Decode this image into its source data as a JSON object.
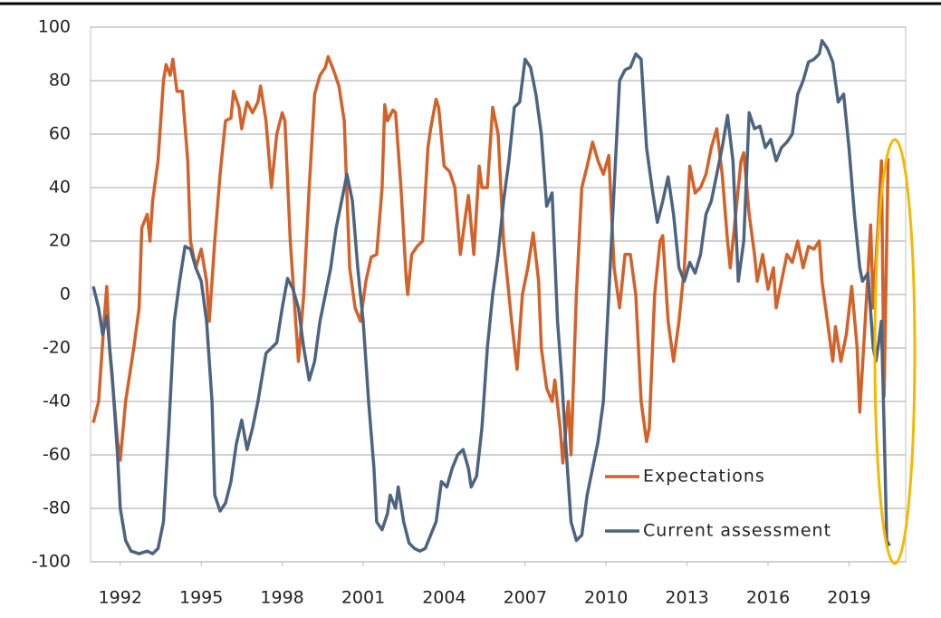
{
  "chart_data": {
    "type": "line",
    "xlim": [
      1990.9,
      2021.1
    ],
    "xticks": [
      1992,
      1995,
      1998,
      2001,
      2004,
      2007,
      2010,
      2013,
      2016,
      2019
    ],
    "ylim": [
      -100,
      100
    ],
    "yticks": [
      -100,
      -80,
      -60,
      -40,
      -20,
      0,
      20,
      40,
      60,
      80,
      100
    ],
    "grid": true,
    "legend": "lower right",
    "series": [
      {
        "name": "Expectations",
        "color": "#d2622a",
        "x": [
          1991.0,
          1991.2,
          1991.4,
          1991.5,
          1991.6,
          1991.9,
          1992.0,
          1992.2,
          1992.5,
          1992.7,
          1992.8,
          1993.0,
          1993.1,
          1993.2,
          1993.4,
          1993.6,
          1993.7,
          1993.85,
          1993.95,
          1994.1,
          1994.3,
          1994.5,
          1994.6,
          1994.8,
          1995.0,
          1995.2,
          1995.3,
          1995.5,
          1995.7,
          1995.9,
          1996.1,
          1996.2,
          1996.4,
          1996.5,
          1996.7,
          1996.9,
          1997.1,
          1997.2,
          1997.4,
          1997.6,
          1997.8,
          1998.0,
          1998.1,
          1998.3,
          1998.5,
          1998.6,
          1998.8,
          1999.0,
          1999.2,
          1999.4,
          1999.6,
          1999.7,
          1999.9,
          2000.1,
          2000.3,
          2000.5,
          2000.7,
          2000.9,
          2001.1,
          2001.3,
          2001.5,
          2001.7,
          2001.8,
          2001.9,
          2002.1,
          2002.2,
          2002.4,
          2002.6,
          2002.65,
          2002.8,
          2003.0,
          2003.2,
          2003.4,
          2003.5,
          2003.7,
          2003.8,
          2004.0,
          2004.2,
          2004.4,
          2004.6,
          2004.8,
          2004.9,
          2005.1,
          2005.3,
          2005.4,
          2005.6,
          2005.8,
          2006.0,
          2006.2,
          2006.5,
          2006.7,
          2006.9,
          2007.1,
          2007.3,
          2007.5,
          2007.6,
          2007.8,
          2008.0,
          2008.1,
          2008.3,
          2008.4,
          2008.6,
          2008.7,
          2008.9,
          2009.1,
          2009.3,
          2009.5,
          2009.7,
          2009.9,
          2010.1,
          2010.3,
          2010.5,
          2010.7,
          2010.9,
          2011.1,
          2011.3,
          2011.5,
          2011.6,
          2011.8,
          2012.0,
          2012.1,
          2012.3,
          2012.5,
          2012.7,
          2012.9,
          2013.1,
          2013.3,
          2013.5,
          2013.7,
          2013.9,
          2014.1,
          2014.3,
          2014.5,
          2014.6,
          2014.8,
          2015.0,
          2015.1,
          2015.3,
          2015.5,
          2015.6,
          2015.8,
          2016.0,
          2016.2,
          2016.3,
          2016.5,
          2016.7,
          2016.9,
          2017.1,
          2017.3,
          2017.5,
          2017.7,
          2017.9,
          2018.0,
          2018.2,
          2018.4,
          2018.5,
          2018.7,
          2018.9,
          2019.1,
          2019.3,
          2019.4,
          2019.6,
          2019.8,
          2019.9,
          2020.1,
          2020.2,
          2020.3,
          2020.45
        ],
        "values": [
          -48,
          -40,
          -10,
          3,
          -20,
          -55,
          -62,
          -40,
          -20,
          -5,
          25,
          30,
          20,
          35,
          50,
          80,
          86,
          82,
          88,
          76,
          76,
          50,
          20,
          10,
          17,
          5,
          -10,
          20,
          45,
          65,
          66,
          76,
          70,
          62,
          72,
          68,
          72,
          78,
          65,
          40,
          60,
          68,
          65,
          20,
          -10,
          -25,
          0,
          40,
          75,
          82,
          85,
          89,
          84,
          78,
          65,
          10,
          -5,
          -10,
          5,
          14,
          15,
          40,
          71,
          65,
          69,
          68,
          40,
          5,
          0,
          15,
          18,
          20,
          55,
          62,
          73,
          70,
          48,
          46,
          40,
          15,
          30,
          37,
          15,
          48,
          40,
          40,
          70,
          60,
          20,
          -10,
          -28,
          0,
          10,
          23,
          5,
          -20,
          -35,
          -40,
          -32,
          -50,
          -63,
          -40,
          -60,
          0,
          40,
          48,
          57,
          50,
          45,
          52,
          10,
          -5,
          15,
          15,
          0,
          -40,
          -55,
          -50,
          0,
          20,
          22,
          -10,
          -25,
          -10,
          10,
          48,
          38,
          40,
          45,
          55,
          62,
          45,
          20,
          10,
          30,
          50,
          53,
          30,
          15,
          5,
          15,
          2,
          10,
          -5,
          5,
          15,
          12,
          20,
          10,
          18,
          17,
          20,
          5,
          -10,
          -25,
          -12,
          -25,
          -15,
          3,
          -20,
          -44,
          -10,
          26,
          -5,
          30,
          50,
          -38,
          51
        ]
      },
      {
        "name": "Current assessment",
        "color": "#4d6481",
        "x": [
          1991.0,
          1991.2,
          1991.35,
          1991.5,
          1991.7,
          1991.9,
          1992.0,
          1992.2,
          1992.4,
          1992.7,
          1993.0,
          1993.2,
          1993.4,
          1993.6,
          1993.8,
          1994.0,
          1994.2,
          1994.4,
          1994.6,
          1994.8,
          1995.0,
          1995.2,
          1995.4,
          1995.5,
          1995.7,
          1995.9,
          1996.1,
          1996.3,
          1996.5,
          1996.7,
          1996.9,
          1997.1,
          1997.4,
          1997.6,
          1997.8,
          1998.0,
          1998.2,
          1998.4,
          1998.6,
          1998.8,
          1999.0,
          1999.2,
          1999.4,
          1999.6,
          1999.8,
          2000.0,
          2000.2,
          2000.4,
          2000.6,
          2000.8,
          2001.0,
          2001.2,
          2001.4,
          2001.5,
          2001.7,
          2001.9,
          2002.0,
          2002.2,
          2002.3,
          2002.5,
          2002.7,
          2002.9,
          2003.1,
          2003.3,
          2003.5,
          2003.7,
          2003.9,
          2004.1,
          2004.3,
          2004.5,
          2004.7,
          2004.9,
          2005.0,
          2005.2,
          2005.4,
          2005.6,
          2005.8,
          2006.0,
          2006.2,
          2006.4,
          2006.6,
          2006.8,
          2007.0,
          2007.2,
          2007.4,
          2007.6,
          2007.8,
          2008.0,
          2008.2,
          2008.35,
          2008.5,
          2008.7,
          2008.9,
          2009.1,
          2009.3,
          2009.5,
          2009.7,
          2009.9,
          2010.1,
          2010.3,
          2010.5,
          2010.7,
          2010.9,
          2011.1,
          2011.3,
          2011.5,
          2011.7,
          2011.9,
          2012.1,
          2012.3,
          2012.5,
          2012.7,
          2012.9,
          2013.1,
          2013.3,
          2013.5,
          2013.7,
          2013.9,
          2014.1,
          2014.3,
          2014.5,
          2014.7,
          2014.9,
          2015.1,
          2015.3,
          2015.5,
          2015.7,
          2015.9,
          2016.1,
          2016.3,
          2016.5,
          2016.7,
          2016.9,
          2017.1,
          2017.3,
          2017.5,
          2017.7,
          2017.9,
          2018.0,
          2018.2,
          2018.4,
          2018.6,
          2018.8,
          2019.0,
          2019.2,
          2019.4,
          2019.5,
          2019.7,
          2019.9,
          2020.0,
          2020.1,
          2020.2,
          2020.3,
          2020.4,
          2020.5
        ],
        "values": [
          3,
          -5,
          -15,
          -8,
          -30,
          -60,
          -80,
          -92,
          -96,
          -97,
          -96,
          -97,
          -95,
          -85,
          -50,
          -10,
          5,
          18,
          17,
          10,
          5,
          -10,
          -40,
          -75,
          -81,
          -78,
          -70,
          -56,
          -47,
          -58,
          -50,
          -40,
          -22,
          -20,
          -18,
          -5,
          6,
          2,
          -5,
          -20,
          -32,
          -25,
          -10,
          0,
          10,
          25,
          35,
          45,
          35,
          10,
          -10,
          -40,
          -65,
          -85,
          -88,
          -82,
          -75,
          -80,
          -72,
          -85,
          -93,
          -95,
          -96,
          -95,
          -90,
          -85,
          -70,
          -72,
          -65,
          -60,
          -58,
          -65,
          -72,
          -68,
          -50,
          -20,
          0,
          15,
          35,
          50,
          70,
          72,
          88,
          85,
          75,
          60,
          33,
          38,
          -10,
          -30,
          -55,
          -85,
          -92,
          -90,
          -75,
          -65,
          -55,
          -40,
          0,
          40,
          80,
          84,
          85,
          90,
          88,
          55,
          40,
          27,
          35,
          44,
          30,
          10,
          5,
          12,
          8,
          15,
          30,
          35,
          45,
          55,
          67,
          50,
          5,
          20,
          68,
          62,
          63,
          55,
          58,
          50,
          55,
          57,
          60,
          75,
          80,
          87,
          88,
          90,
          95,
          92,
          87,
          72,
          75,
          55,
          30,
          10,
          5,
          8,
          -20,
          -25,
          -18,
          -10,
          -50,
          -92,
          -94
        ]
      }
    ]
  }
}
